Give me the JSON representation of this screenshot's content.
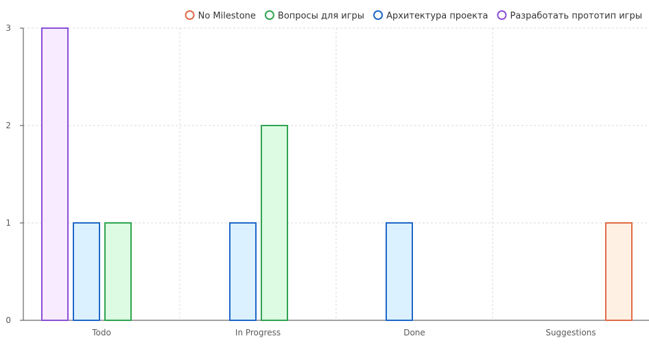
{
  "chart_data": {
    "type": "bar",
    "categories": [
      "Todo",
      "In Progress",
      "Done",
      "Suggestions"
    ],
    "series": [
      {
        "name": "Разработать прототип игры",
        "values": [
          3,
          0,
          0,
          0
        ],
        "stroke": "#8a4fd6",
        "fill": "#f8eaff"
      },
      {
        "name": "Архитектура проекта",
        "values": [
          1,
          1,
          1,
          0
        ],
        "stroke": "#1e66c8",
        "fill": "#dbf1ff"
      },
      {
        "name": "Вопросы для игры",
        "values": [
          1,
          2,
          0,
          0
        ],
        "stroke": "#2fa350",
        "fill": "#dcfbe2"
      },
      {
        "name": "No Milestone",
        "values": [
          0,
          0,
          0,
          1
        ],
        "stroke": "#e26a45",
        "fill": "#fff0e4"
      }
    ],
    "legend_order": [
      "No Milestone",
      "Вопросы для игры",
      "Архитектура проекта",
      "Разработать прототип игры"
    ],
    "ylim": [
      0,
      3
    ],
    "yticks": [
      0,
      1,
      2,
      3
    ],
    "grid": true,
    "legend_position": "top-right",
    "axis_color": "#444444",
    "grid_color": "#d9d9d9"
  }
}
